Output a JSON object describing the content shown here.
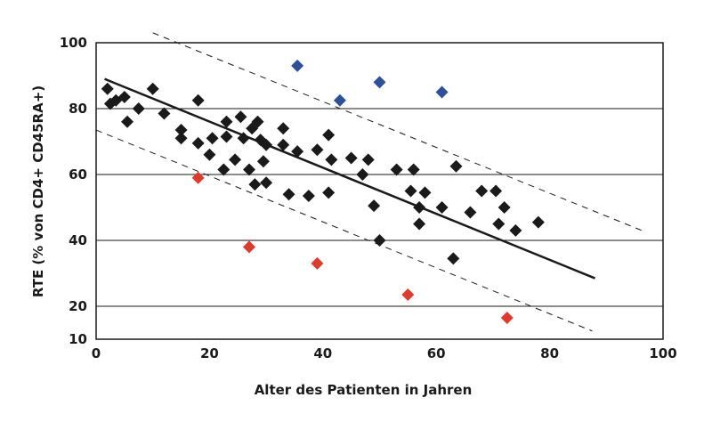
{
  "chart_data": {
    "type": "scatter",
    "title": "",
    "xlabel": "Alter des Patienten in Jahren",
    "ylabel": "RTE (% von CD4+ CD45RA+)",
    "xlim": [
      0,
      100
    ],
    "ylim": [
      10,
      100
    ],
    "xticks": [
      "0",
      "20",
      "40",
      "60",
      "80",
      "100"
    ],
    "yticks": [
      "10",
      "20",
      "40",
      "60",
      "80",
      "100"
    ],
    "grid": "horizontal",
    "legend": "none",
    "colors": {
      "black": "#1a1a1a",
      "blue": "#2e4f9a",
      "red": "#e03a2c"
    },
    "series": [
      {
        "color": "black",
        "points": [
          [
            2,
            86
          ],
          [
            2.5,
            81.5
          ],
          [
            3.5,
            82.5
          ],
          [
            5,
            83.5
          ],
          [
            5.5,
            76
          ],
          [
            7.5,
            80
          ],
          [
            10,
            86
          ],
          [
            12,
            78.5
          ],
          [
            15,
            73.5
          ],
          [
            15,
            71
          ],
          [
            18,
            82.5
          ],
          [
            18,
            69.5
          ],
          [
            20,
            66
          ],
          [
            20.5,
            71
          ],
          [
            22.5,
            61.5
          ],
          [
            23,
            71.5
          ],
          [
            23,
            76
          ],
          [
            24.5,
            64.5
          ],
          [
            25.5,
            77.5
          ],
          [
            26,
            71
          ],
          [
            27,
            61.5
          ],
          [
            27.5,
            74
          ],
          [
            28,
            57
          ],
          [
            28.5,
            76
          ],
          [
            29,
            70.5
          ],
          [
            29.5,
            64
          ],
          [
            30,
            57.5
          ],
          [
            30,
            69
          ],
          [
            33,
            74
          ],
          [
            33,
            69
          ],
          [
            34,
            54
          ],
          [
            35.5,
            67
          ],
          [
            37.5,
            53.5
          ],
          [
            39,
            67.5
          ],
          [
            41,
            54.5
          ],
          [
            41,
            72
          ],
          [
            41.5,
            64.5
          ],
          [
            45,
            65
          ],
          [
            47,
            60
          ],
          [
            48,
            64.5
          ],
          [
            49,
            50.5
          ],
          [
            50,
            40
          ],
          [
            53,
            61.5
          ],
          [
            55.5,
            55
          ],
          [
            56,
            61.5
          ],
          [
            57,
            45
          ],
          [
            57,
            50
          ],
          [
            58,
            54.5
          ],
          [
            61,
            50
          ],
          [
            63,
            34.5
          ],
          [
            63.5,
            62.5
          ],
          [
            66,
            48.5
          ],
          [
            68,
            55
          ],
          [
            70.5,
            55
          ],
          [
            71,
            45
          ],
          [
            72,
            50
          ],
          [
            74,
            43
          ],
          [
            78,
            45.5
          ]
        ]
      },
      {
        "color": "blue",
        "points": [
          [
            35.5,
            93
          ],
          [
            43,
            82.5
          ],
          [
            50,
            88
          ],
          [
            61,
            85
          ]
        ]
      },
      {
        "color": "red",
        "points": [
          [
            18,
            59
          ],
          [
            27,
            38
          ],
          [
            39,
            33
          ],
          [
            55,
            23.5
          ],
          [
            72.5,
            16.5
          ]
        ]
      }
    ],
    "regression": {
      "from": [
        1.5,
        89
      ],
      "to": [
        88,
        28.5
      ]
    },
    "bounds": [
      {
        "from": [
          10,
          103
        ],
        "to": [
          97,
          42.5
        ]
      },
      {
        "from": [
          0,
          73.5
        ],
        "to": [
          87.5,
          12.5
        ]
      }
    ]
  }
}
